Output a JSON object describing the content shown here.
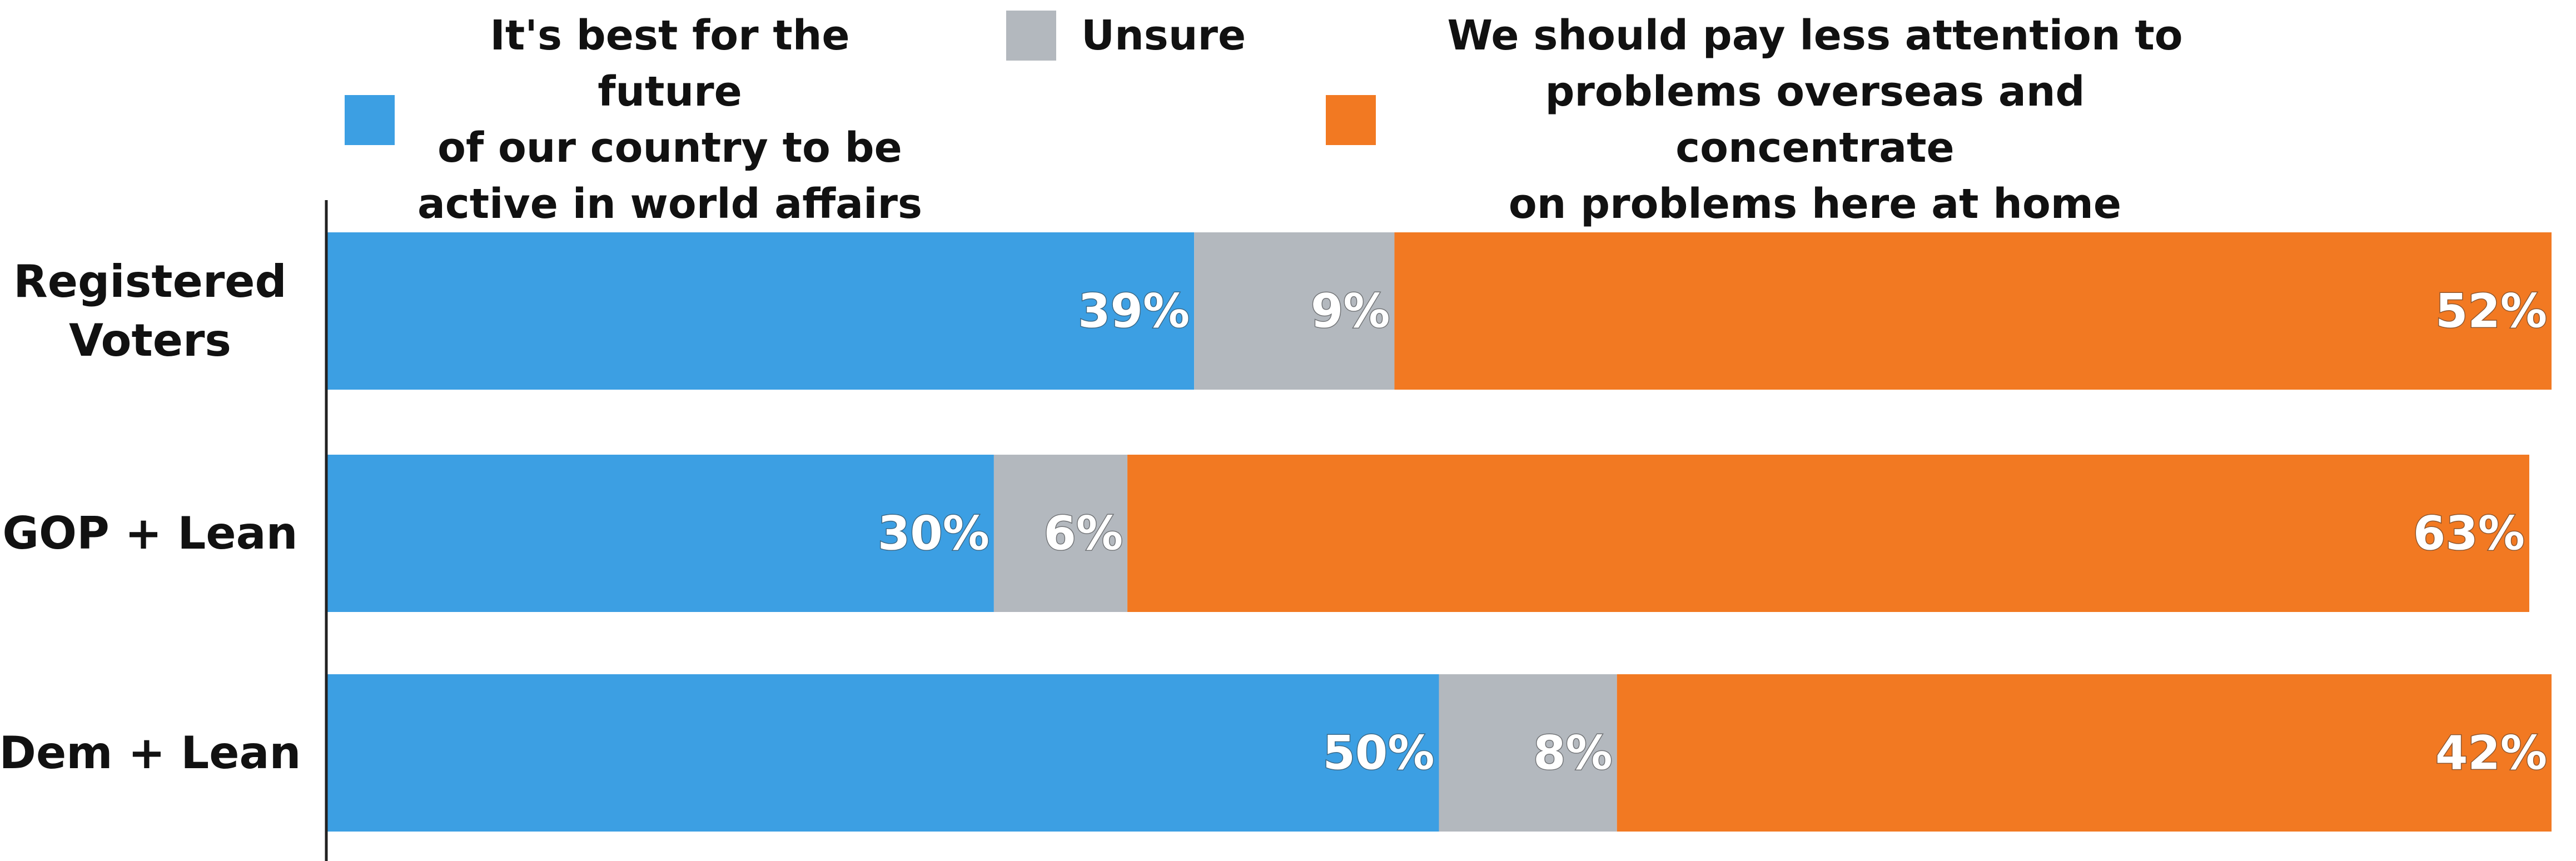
{
  "chart_data": {
    "type": "bar",
    "orientation": "horizontal",
    "stacked": true,
    "percent_stacked": true,
    "xlim": [
      0,
      100
    ],
    "legend_position": "top",
    "grid": false,
    "categories": [
      "Registered Voters",
      "GOP + Lean",
      "Dem + Lean"
    ],
    "series": [
      {
        "name": "It's best for the future of our country to be active in world affairs",
        "color": "#3C9FE3",
        "values": [
          39,
          30,
          50
        ],
        "labels": [
          "39%",
          "30%",
          "50%"
        ]
      },
      {
        "name": "Unsure",
        "color": "#B3B8BE",
        "values": [
          9,
          6,
          8
        ],
        "labels": [
          "9%",
          "6%",
          "8%"
        ]
      },
      {
        "name": "We should pay less attention to problems overseas and concentrate on problems here at home",
        "color": "#F27922",
        "values": [
          52,
          63,
          42
        ],
        "labels": [
          "52%",
          "63%",
          "42%"
        ]
      }
    ]
  },
  "legend": {
    "active_lines": [
      "It's best for the future",
      "of our country to be",
      "active in world affairs"
    ],
    "unsure_lines": [
      "Unsure"
    ],
    "home_lines": [
      "We should pay less attention to",
      "problems overseas and concentrate",
      "on problems here at home"
    ]
  },
  "category_label_lines": [
    [
      "Registered",
      "Voters"
    ],
    [
      "GOP + Lean"
    ],
    [
      "Dem + Lean"
    ]
  ]
}
